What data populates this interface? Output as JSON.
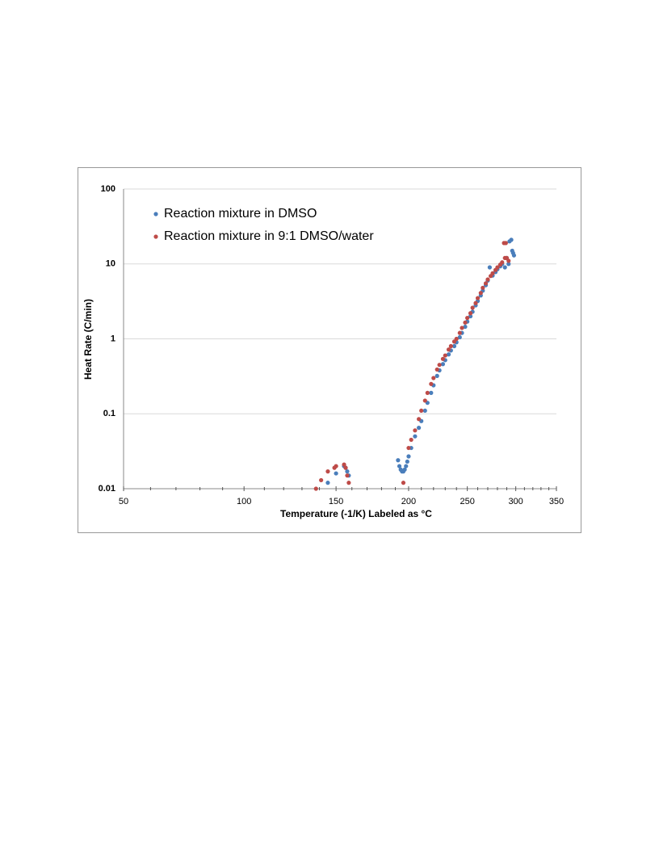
{
  "chart_data": {
    "type": "scatter",
    "y_label": "Heat Rate (C/min)",
    "x_label": "Temperature (-1/K) Labeled as °C",
    "x_scale": "inverse-kelvin",
    "y_scale": "log",
    "xlim": [
      50,
      350
    ],
    "xticks": [
      50,
      100,
      150,
      200,
      250,
      300,
      350
    ],
    "xminorticks": [
      60,
      70,
      80,
      90,
      110,
      120,
      130,
      140,
      160,
      170,
      180,
      190,
      210,
      220,
      230,
      240,
      260,
      270,
      280,
      290,
      310,
      320,
      330,
      340
    ],
    "ylim": [
      0.01,
      100
    ],
    "yticks": [
      0.01,
      0.1,
      1,
      10,
      100
    ],
    "grid": true,
    "legend": "top-left",
    "series": [
      {
        "name": "Reaction mixture in DMSO",
        "color": "#4a7ebb",
        "x": [
          145,
          150,
          155,
          156,
          157,
          158,
          192,
          193,
          194,
          195,
          196,
          197,
          198,
          199,
          200,
          202,
          205,
          208,
          210,
          213,
          215,
          218,
          220,
          223,
          225,
          228,
          230,
          233,
          235,
          238,
          240,
          243,
          245,
          248,
          250,
          253,
          255,
          258,
          260,
          263,
          265,
          268,
          270,
          272,
          275,
          278,
          280,
          283,
          285,
          288,
          290,
          292,
          293,
          295,
          296,
          297,
          298
        ],
        "values": [
          0.012,
          0.016,
          0.02,
          0.019,
          0.017,
          0.015,
          0.024,
          0.02,
          0.018,
          0.017,
          0.017,
          0.018,
          0.02,
          0.023,
          0.027,
          0.035,
          0.05,
          0.065,
          0.08,
          0.11,
          0.14,
          0.19,
          0.24,
          0.32,
          0.38,
          0.46,
          0.52,
          0.62,
          0.7,
          0.8,
          0.9,
          1.05,
          1.2,
          1.45,
          1.7,
          2,
          2.3,
          2.8,
          3.2,
          3.8,
          4.4,
          5.2,
          6,
          9,
          7,
          7.8,
          8.5,
          9.3,
          10,
          9,
          12,
          10,
          20,
          21,
          15,
          14,
          13
        ]
      },
      {
        "name": "Reaction mixture in 9:1 DMSO/water",
        "color": "#be4b48",
        "x": [
          138,
          141,
          145,
          149,
          150,
          155,
          156,
          157,
          158,
          196,
          200,
          202,
          205,
          208,
          210,
          213,
          215,
          218,
          220,
          223,
          225,
          228,
          230,
          233,
          235,
          238,
          240,
          243,
          245,
          248,
          250,
          253,
          255,
          258,
          260,
          263,
          265,
          268,
          270,
          273,
          275,
          278,
          280,
          283,
          285,
          287,
          288,
          289,
          290,
          292
        ],
        "values": [
          0.01,
          0.013,
          0.017,
          0.019,
          0.02,
          0.021,
          0.019,
          0.015,
          0.012,
          0.012,
          0.035,
          0.045,
          0.06,
          0.085,
          0.11,
          0.15,
          0.19,
          0.25,
          0.3,
          0.39,
          0.45,
          0.54,
          0.6,
          0.72,
          0.8,
          0.92,
          1,
          1.2,
          1.4,
          1.65,
          1.9,
          2.2,
          2.6,
          3,
          3.5,
          4.1,
          4.8,
          5.5,
          6.2,
          6.9,
          7.5,
          8.3,
          9,
          9.8,
          10.5,
          19,
          12,
          19,
          12,
          11
        ]
      }
    ]
  }
}
